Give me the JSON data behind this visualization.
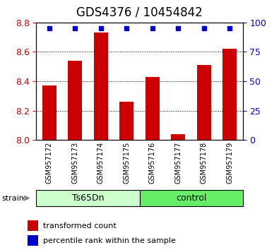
{
  "title": "GDS4376 / 10454842",
  "samples": [
    "GSM957172",
    "GSM957173",
    "GSM957174",
    "GSM957175",
    "GSM957176",
    "GSM957177",
    "GSM957178",
    "GSM957179"
  ],
  "bar_values": [
    8.37,
    8.54,
    8.73,
    8.26,
    8.43,
    8.04,
    8.51,
    8.62
  ],
  "percentile_values": [
    95,
    95,
    95,
    95,
    95,
    95,
    95,
    95
  ],
  "ylim_left": [
    8.0,
    8.8
  ],
  "ylim_right": [
    0,
    100
  ],
  "yticks_left": [
    8.0,
    8.2,
    8.4,
    8.6,
    8.8
  ],
  "yticks_right": [
    0,
    25,
    50,
    75,
    100
  ],
  "bar_color": "#cc0000",
  "dot_color": "#0000cc",
  "bar_width": 0.55,
  "groups": [
    {
      "label": "Ts65Dn",
      "start": 0,
      "end": 4,
      "color": "#ccffcc"
    },
    {
      "label": "control",
      "start": 4,
      "end": 8,
      "color": "#66ee66"
    }
  ],
  "strain_label": "strain",
  "legend_items": [
    {
      "color": "#cc0000",
      "label": "transformed count"
    },
    {
      "color": "#0000cc",
      "label": "percentile rank within the sample"
    }
  ],
  "tick_label_color_left": "#cc0000",
  "tick_label_color_right": "#0000cc",
  "bg_color": "#ffffff",
  "plot_bg": "#ffffff",
  "title_fontsize": 12,
  "axis_fontsize": 9,
  "label_fontsize": 7
}
